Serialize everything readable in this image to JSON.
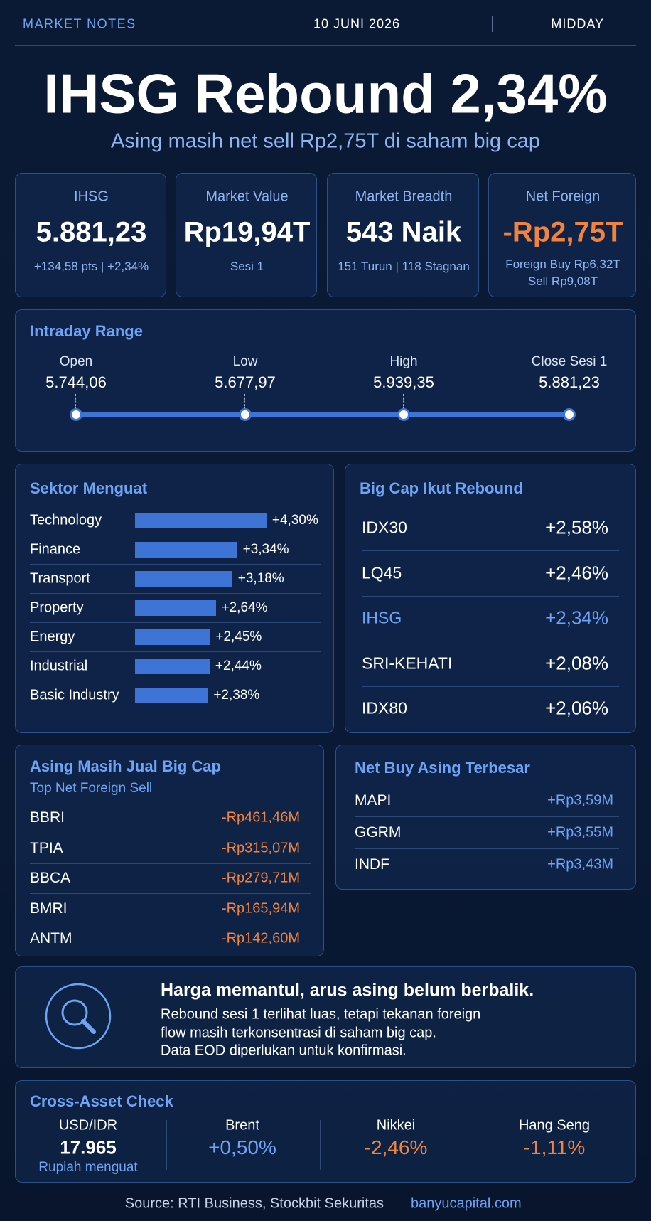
{
  "header": {
    "brand": "MARKET NOTES",
    "date": "10 JUNI 2026",
    "session": "MIDDAY"
  },
  "title": "IHSG Rebound 2,34%",
  "subtitle": "Asing masih net sell Rp2,75T di saham big cap",
  "stats": [
    {
      "label": "IHSG",
      "value": "5.881,23",
      "sub": [
        "+134,58 pts | +2,34%"
      ]
    },
    {
      "label": "Market Value",
      "value": "Rp19,94T",
      "sub": [
        "Sesi 1"
      ]
    },
    {
      "label": "Market Breadth",
      "value": "543 Naik",
      "sub": [
        "151 Turun | 118 Stagnan"
      ]
    },
    {
      "label": "Net Foreign",
      "value": "-Rp2,75T",
      "sub": [
        "Foreign Buy Rp6,32T",
        "Sell Rp9,08T"
      ],
      "color": "#f2833f"
    }
  ],
  "intraday": {
    "title": "Intraday Range",
    "points": [
      {
        "label": "Open",
        "value": "5.744,06"
      },
      {
        "label": "Low",
        "value": "5.677,97"
      },
      {
        "label": "High",
        "value": "5.939,35"
      },
      {
        "label": "Close Sesi 1",
        "value": "5.881,23"
      }
    ]
  },
  "sectors": {
    "title": "Sektor Menguat",
    "color": "#3d74d6",
    "rows": [
      {
        "name": "Technology",
        "value": 4.3,
        "label": "+4,30%"
      },
      {
        "name": "Finance",
        "value": 3.34,
        "label": "+3,34%"
      },
      {
        "name": "Transport",
        "value": 3.18,
        "label": "+3,18%"
      },
      {
        "name": "Property",
        "value": 2.64,
        "label": "+2,64%"
      },
      {
        "name": "Energy",
        "value": 2.45,
        "label": "+2,45%"
      },
      {
        "name": "Industrial",
        "value": 2.44,
        "label": "+2,44%"
      },
      {
        "name": "Basic Industry",
        "value": 2.38,
        "label": "+2,38%"
      }
    ]
  },
  "bigcap": {
    "title": "Big Cap Ikut Rebound",
    "rows": [
      {
        "name": "IDX30",
        "change": "+2,58%"
      },
      {
        "name": "LQ45",
        "change": "+2,46%"
      },
      {
        "name": "IHSG",
        "change": "+2,34%",
        "highlight": true
      },
      {
        "name": "SRI-KEHATI",
        "change": "+2,08%"
      },
      {
        "name": "IDX80",
        "change": "+2,06%"
      }
    ]
  },
  "foreign_sell": {
    "title": "Asing Masih Jual Big Cap",
    "subtitle": "Top Net Foreign Sell",
    "color": "#f2833f",
    "rows": [
      {
        "ticker": "BBRI",
        "value": "-Rp461,46M"
      },
      {
        "ticker": "TPIA",
        "value": "-Rp315,07M"
      },
      {
        "ticker": "BBCA",
        "value": "-Rp279,71M"
      },
      {
        "ticker": "BMRI",
        "value": "-Rp165,94M"
      },
      {
        "ticker": "ANTM",
        "value": "-Rp142,60M"
      }
    ]
  },
  "foreign_buy": {
    "title": "Net Buy Asing Terbesar",
    "color": "#6fa3f5",
    "rows": [
      {
        "ticker": "MAPI",
        "value": "+Rp3,59M"
      },
      {
        "ticker": "GGRM",
        "value": "+Rp3,55M"
      },
      {
        "ticker": "INDF",
        "value": "+Rp3,43M"
      }
    ]
  },
  "note": {
    "title": "Harga memantul, arus asing belum berbalik.",
    "lines": [
      "Rebound sesi 1 terlihat luas, tetapi tekanan foreign",
      "flow masih terkonsentrasi di saham big cap.",
      "Data EOD diperlukan untuk konfirmasi."
    ]
  },
  "cross_asset": {
    "title": "Cross-Asset Check",
    "items": [
      {
        "name": "USD/IDR",
        "value": "17.965",
        "note": "Rupiah menguat",
        "color": "#ffffff"
      },
      {
        "name": "Brent",
        "value": "+0,50%",
        "color": "#6fa3f5"
      },
      {
        "name": "Nikkei",
        "value": "-2,46%",
        "color": "#f2833f"
      },
      {
        "name": "Hang Seng",
        "value": "-1,11%",
        "color": "#f2833f"
      }
    ]
  },
  "footer": {
    "source": "Source: RTI Business, Stockbit Sekuritas",
    "site": "banyucapital.com"
  }
}
